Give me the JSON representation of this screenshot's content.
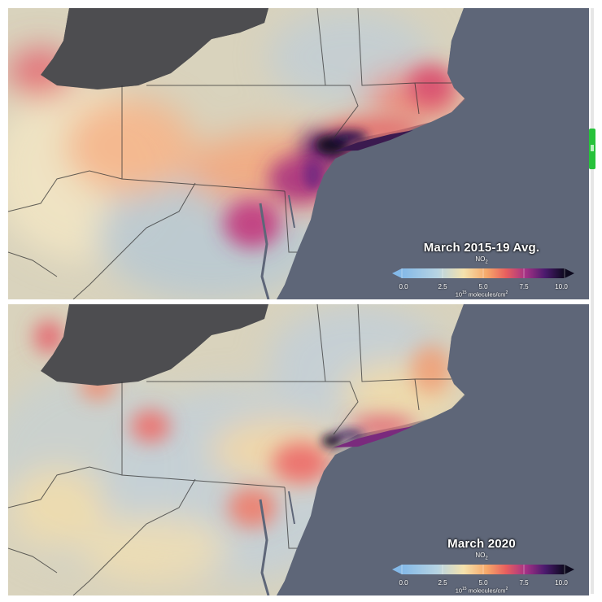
{
  "panels": [
    {
      "title": "March 2015-19 Avg.",
      "pollutant": "NO",
      "pollutant_sub": "2",
      "scale_ticks": [
        "0.0",
        "2.5",
        "5.0",
        "7.5",
        "10.0"
      ],
      "units": "10",
      "units_exp": "15",
      "units_text": " molecules/cm",
      "units_sup": "2"
    },
    {
      "title": "March 2020",
      "pollutant": "NO",
      "pollutant_sub": "2",
      "scale_ticks": [
        "0.0",
        "2.5",
        "5.0",
        "7.5",
        "10.0"
      ],
      "units": "10",
      "units_exp": "15",
      "units_text": " molecules/cm",
      "units_sup": "2"
    }
  ],
  "colors": {
    "ocean": "#5e6678",
    "lake": "#4d4d50",
    "land_low": "#aab9c6",
    "land_mid": "#f2deae",
    "scroll_accent": "#27c23b"
  }
}
